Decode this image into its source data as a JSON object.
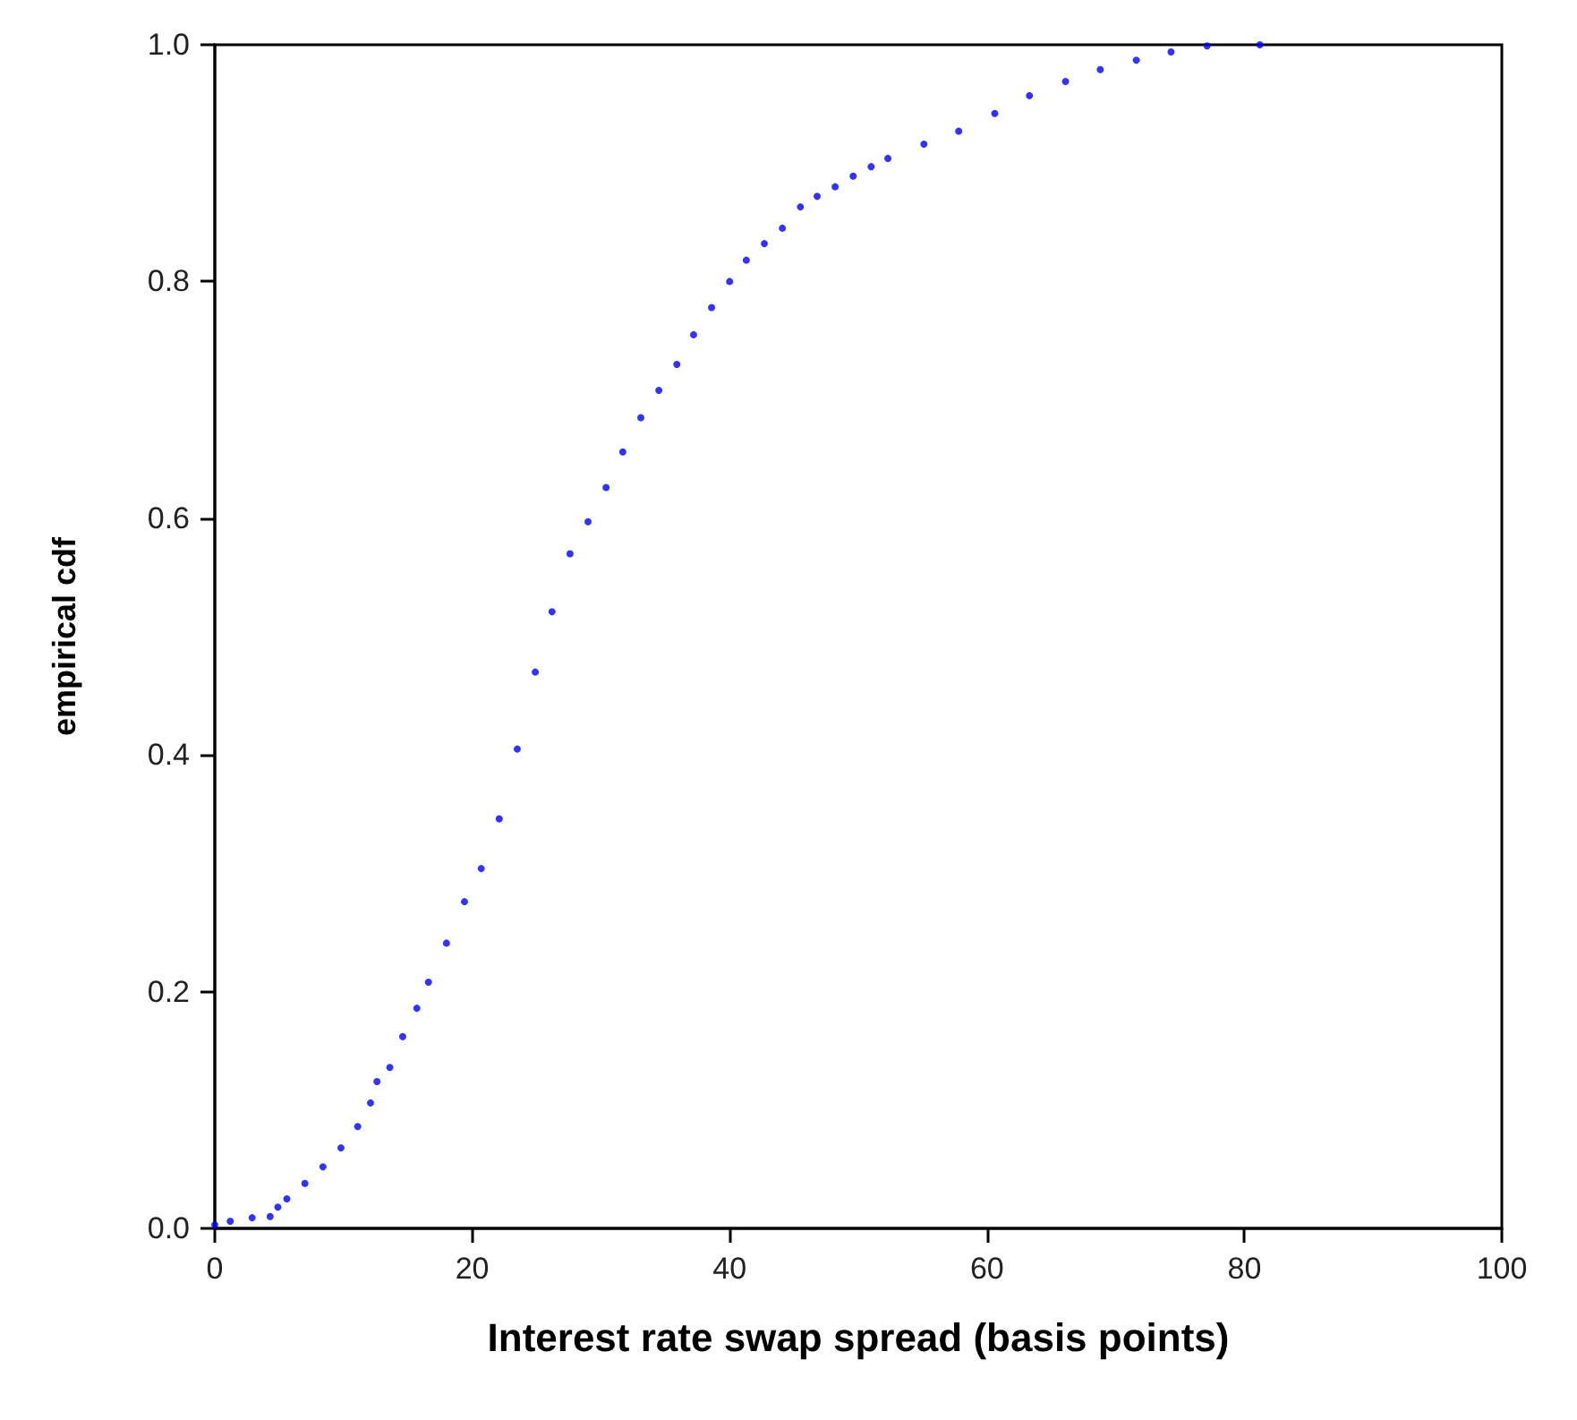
{
  "chart_data": {
    "type": "scatter",
    "xlabel": "Interest rate swap spread (basis points)",
    "ylabel": "empirical cdf",
    "marker": "circle",
    "grid": false,
    "xlim": [
      0,
      100
    ],
    "xticks": [
      0,
      20,
      40,
      60,
      80,
      100
    ],
    "ylim": [
      0,
      1
    ],
    "yticks": [
      {
        "value": 0,
        "label": "0.0"
      },
      {
        "value": 0.2,
        "label": "0.2"
      },
      {
        "value": 0.4,
        "label": "0.4"
      },
      {
        "value": 0.6,
        "label": "0.6"
      },
      {
        "value": 0.8,
        "label": "0.8"
      },
      {
        "value": 1,
        "label": "1.0"
      }
    ],
    "series": [
      {
        "color": "#0000ff",
        "x": [
          0,
          1.2,
          2.9,
          4.3,
          4.9,
          5.6,
          7.0,
          8.4,
          9.8,
          11.1,
          12.1,
          12.6,
          13.6,
          14.6,
          15.7,
          16.6,
          18.0,
          19.4,
          20.7,
          22.1,
          23.5,
          24.9,
          26.2,
          27.6,
          29.0,
          30.4,
          31.7,
          33.1,
          34.5,
          35.9,
          37.2,
          38.6,
          40.0,
          41.3,
          42.7,
          44.1,
          45.5,
          46.8,
          48.2,
          49.6,
          51.0,
          52.3,
          55.1,
          57.8,
          60.6,
          63.3,
          66.1,
          68.8,
          71.6,
          74.3,
          77.1,
          81.2
        ],
        "values": [
          0.003,
          0.006,
          0.009,
          0.01,
          0.018,
          0.025,
          0.038,
          0.052,
          0.068,
          0.086,
          0.106,
          0.124,
          0.136,
          0.162,
          0.186,
          0.208,
          0.241,
          0.276,
          0.304,
          0.346,
          0.405,
          0.47,
          0.521,
          0.57,
          0.597,
          0.626,
          0.656,
          0.685,
          0.708,
          0.73,
          0.755,
          0.778,
          0.8,
          0.818,
          0.832,
          0.845,
          0.863,
          0.872,
          0.88,
          0.889,
          0.897,
          0.904,
          0.916,
          0.927,
          0.942,
          0.957,
          0.969,
          0.979,
          0.987,
          0.994,
          0.999,
          1.0
        ]
      }
    ]
  }
}
